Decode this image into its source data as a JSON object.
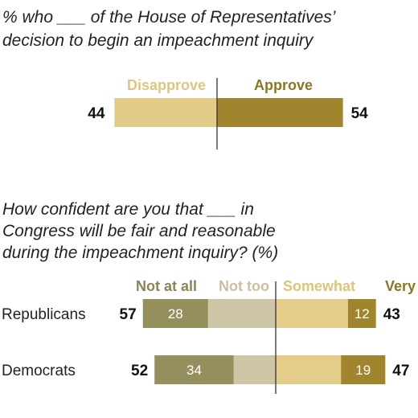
{
  "colors": {
    "disapprove": "#e2ca87",
    "approve": "#a1842e",
    "not_at_all": "#958f5e",
    "not_too": "#cdc5a5",
    "somewhat": "#e3cd89",
    "very": "#a1842e",
    "header_disapprove": "#dfc67e",
    "header_approve": "#8f7523",
    "header_not_at_all": "#8b8454",
    "header_not_too": "#c9c1a0",
    "header_somewhat": "#dcc478",
    "header_very": "#8f7523",
    "axis": "#333333",
    "text": "#222222"
  },
  "chart_data": [
    {
      "type": "bar",
      "orientation": "horizontal-diverging",
      "title": "% who ___ of the House of Representatives’ decision to begin an impeachment inquiry",
      "title_lines": [
        "% who ___ of the House of Representatives’",
        "decision to begin an impeachment inquiry"
      ],
      "series": [
        {
          "name": "Disapprove",
          "values": [
            44
          ],
          "side": "left"
        },
        {
          "name": "Approve",
          "values": [
            54
          ],
          "side": "right"
        }
      ]
    },
    {
      "type": "bar",
      "orientation": "horizontal-diverging-stacked",
      "title": "How confident are you that ___ in Congress will be fair and reasonable during the impeachment inquiry? (%)",
      "title_lines": [
        "How confident are you that ___ in",
        "Congress will be fair and reasonable",
        "during the impeachment inquiry? (%)"
      ],
      "categories": [
        "Republicans",
        "Democrats"
      ],
      "series": [
        {
          "name": "Not at all",
          "values": [
            28,
            34
          ],
          "side": "left"
        },
        {
          "name": "Not too",
          "values": [
            29,
            18
          ],
          "side": "left"
        },
        {
          "name": "Somewhat",
          "values": [
            31,
            28
          ],
          "side": "right"
        },
        {
          "name": "Very",
          "values": [
            12,
            19
          ],
          "side": "right"
        }
      ],
      "totals_not_confident": [
        57,
        52
      ],
      "totals_confident": [
        43,
        47
      ]
    }
  ]
}
